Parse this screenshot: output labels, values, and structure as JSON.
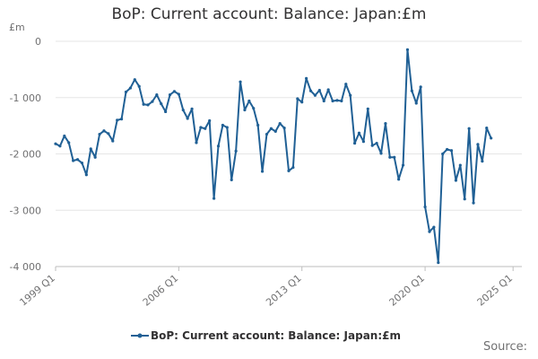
{
  "chart_data": {
    "type": "line",
    "title": "BoP: Current account: Balance: Japan:£m",
    "unit_label": "£m",
    "source_label": "Source:",
    "legend": [
      "BoP: Current account: Balance: Japan:£m"
    ],
    "series_color": "#206095",
    "gridlines": true,
    "legend_position": "bottom",
    "x_start": "1999 Q1",
    "x_tick_labels": [
      "1999 Q1",
      "2006 Q1",
      "2013 Q1",
      "2020 Q1",
      "2025 Q1"
    ],
    "y_tick_labels": [
      "0",
      "-1 000",
      "-2 000",
      "-3 000",
      "-4 000"
    ],
    "y_ticks": [
      0,
      -1000,
      -2000,
      -3000,
      -4000
    ],
    "ylim": [
      -4000,
      0
    ],
    "series": [
      {
        "name": "BoP: Current account: Balance: Japan:£m",
        "values": [
          -1820,
          -1860,
          -1680,
          -1800,
          -2120,
          -2100,
          -2160,
          -2370,
          -1910,
          -2060,
          -1650,
          -1590,
          -1640,
          -1770,
          -1400,
          -1380,
          -900,
          -830,
          -680,
          -800,
          -1120,
          -1130,
          -1070,
          -950,
          -1110,
          -1250,
          -950,
          -890,
          -940,
          -1220,
          -1370,
          -1200,
          -1800,
          -1530,
          -1550,
          -1410,
          -2790,
          -1860,
          -1490,
          -1530,
          -2460,
          -1950,
          -720,
          -1220,
          -1060,
          -1190,
          -1490,
          -2310,
          -1650,
          -1550,
          -1600,
          -1460,
          -1540,
          -2300,
          -2240,
          -1020,
          -1080,
          -660,
          -880,
          -960,
          -870,
          -1060,
          -860,
          -1060,
          -1050,
          -1060,
          -760,
          -960,
          -1810,
          -1630,
          -1780,
          -1200,
          -1850,
          -1810,
          -1990,
          -1460,
          -2060,
          -2060,
          -2450,
          -2200,
          -150,
          -880,
          -1100,
          -810,
          -2940,
          -3380,
          -3300,
          -3930,
          -2000,
          -1920,
          -1940,
          -2470,
          -2200,
          -2800,
          -1550,
          -2870,
          -1830,
          -2130,
          -1540,
          -1720
        ]
      }
    ]
  }
}
